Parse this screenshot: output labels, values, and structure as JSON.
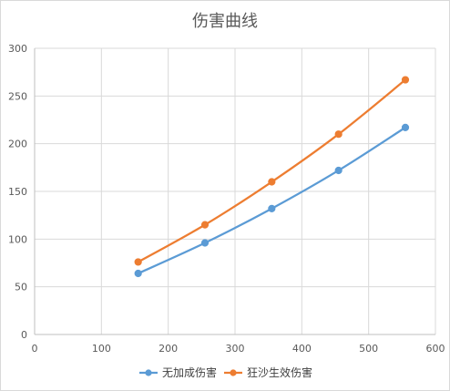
{
  "chart_data": {
    "type": "scatter",
    "title": "伤害曲线",
    "xlabel": "",
    "ylabel": "",
    "xlim": [
      0,
      600
    ],
    "ylim": [
      0,
      300
    ],
    "xticks": [
      0,
      100,
      200,
      300,
      400,
      500,
      600
    ],
    "yticks": [
      0,
      50,
      100,
      150,
      200,
      250,
      300
    ],
    "grid": true,
    "legend_position": "bottom",
    "series": [
      {
        "name": "无加成伤害",
        "color": "#5B9BD5",
        "x": [
          155,
          255,
          355,
          455,
          555
        ],
        "y": [
          64,
          96,
          132,
          172,
          217
        ]
      },
      {
        "name": "狂沙生效伤害",
        "color": "#ED7D31",
        "x": [
          155,
          255,
          355,
          455,
          555
        ],
        "y": [
          76,
          115,
          160,
          210,
          267
        ]
      }
    ]
  }
}
